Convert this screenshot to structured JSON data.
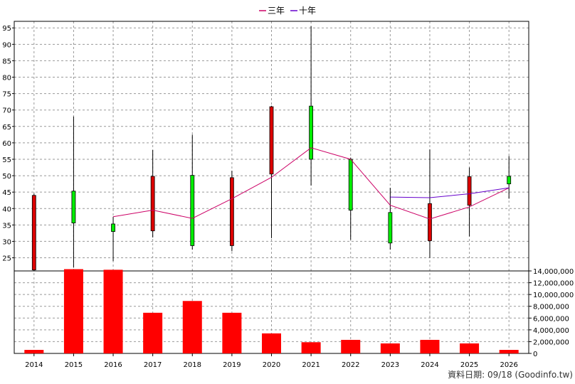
{
  "chart_data": {
    "type": "candlestick",
    "categories": [
      "2014",
      "2015",
      "2016",
      "2017",
      "2018",
      "2019",
      "2020",
      "2021",
      "2022",
      "2023",
      "2024",
      "2025",
      "2026"
    ],
    "price": {
      "ylim": [
        21,
        97
      ],
      "yticks": [
        25,
        30,
        35,
        40,
        45,
        50,
        55,
        60,
        65,
        70,
        75,
        80,
        85,
        90,
        95
      ],
      "ohlc": [
        {
          "open": 44.0,
          "high": 44.5,
          "low": 21.0,
          "close": 21.3
        },
        {
          "open": 35.6,
          "high": 68.0,
          "low": 22.0,
          "close": 45.3
        },
        {
          "open": 33.0,
          "high": 37.5,
          "low": 24.0,
          "close": 35.3
        },
        {
          "open": 49.8,
          "high": 57.8,
          "low": 31.2,
          "close": 33.2
        },
        {
          "open": 28.7,
          "high": 62.5,
          "low": 27.5,
          "close": 50.1
        },
        {
          "open": 49.4,
          "high": 51.5,
          "low": 27.0,
          "close": 28.7
        },
        {
          "open": 71.0,
          "high": 71.3,
          "low": 31.0,
          "close": 50.5
        },
        {
          "open": 55.0,
          "high": 95.5,
          "low": 47.0,
          "close": 71.2
        },
        {
          "open": 39.5,
          "high": 55.5,
          "low": 30.5,
          "close": 55.0
        },
        {
          "open": 29.5,
          "high": 46.3,
          "low": 27.5,
          "close": 38.8
        },
        {
          "open": 41.5,
          "high": 58.0,
          "low": 25.0,
          "close": 30.2
        },
        {
          "open": 49.7,
          "high": 52.5,
          "low": 31.5,
          "close": 41.0
        },
        {
          "open": 47.5,
          "high": 56.0,
          "low": 43.0,
          "close": 49.8
        }
      ],
      "series": [
        {
          "name": "三年",
          "color": "#cc0066",
          "values": [
            null,
            null,
            37.5,
            39.5,
            37.0,
            43.0,
            49.5,
            58.5,
            55.0,
            41.0,
            36.8,
            40.5,
            46.3
          ]
        },
        {
          "name": "十年",
          "color": "#6600cc",
          "values": [
            null,
            null,
            null,
            null,
            null,
            null,
            null,
            null,
            null,
            43.5,
            43.3,
            44.5,
            46.3
          ]
        }
      ]
    },
    "volume": {
      "ylim": [
        0,
        14000000
      ],
      "yticks": [
        0,
        2000000,
        4000000,
        6000000,
        8000000,
        10000000,
        12000000,
        14000000
      ],
      "ytick_labels": [
        "0",
        "2,000,000",
        "4,000,000",
        "6,000,000",
        "8,000,000",
        "10,000,000",
        "12,000,000",
        "14,000,000"
      ],
      "values": [
        600000,
        14300000,
        14200000,
        6900000,
        8900000,
        6900000,
        3400000,
        1900000,
        2300000,
        1700000,
        2300000,
        1700000,
        600000
      ],
      "color": "#ff0000"
    },
    "colors": {
      "up": "#00ee00",
      "down": "#dd0000",
      "wick": "#000000",
      "grid": "#999999"
    },
    "grid": true,
    "legend_position": "top-center",
    "footer": "資料日期: 09/18  (Goodinfo.tw)"
  }
}
